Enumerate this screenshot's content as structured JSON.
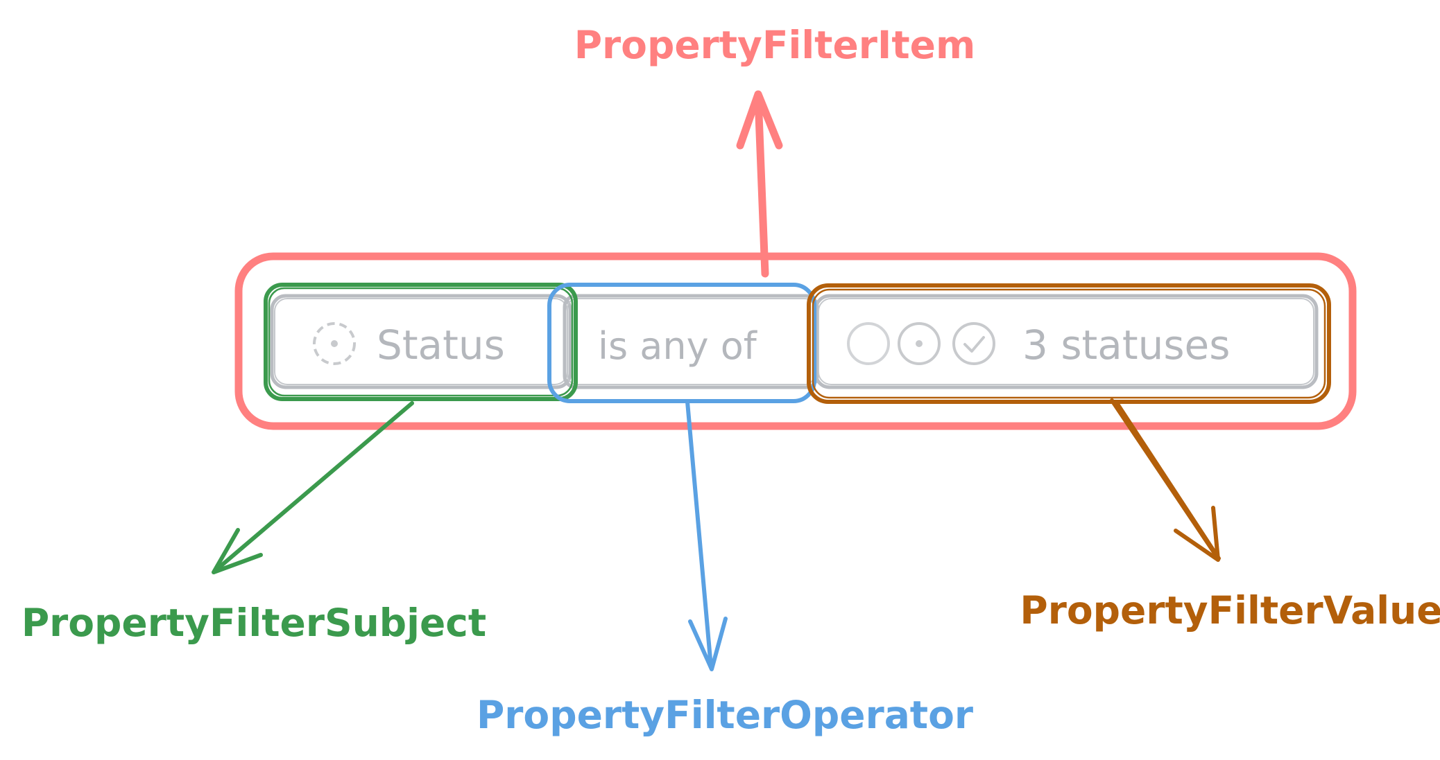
{
  "filter_item": {
    "subject": {
      "label": "Status",
      "icon": "dashed-circle-icon"
    },
    "operator": {
      "label": "is any of"
    },
    "value": {
      "label": "3 statuses",
      "icons": [
        "empty-circle-icon",
        "dotted-circle-icon",
        "check-circle-icon"
      ]
    }
  },
  "annotations": {
    "item": {
      "label": "PropertyFilterItem",
      "color": "#ff8080"
    },
    "subject": {
      "label": "PropertyFilterSubject",
      "color": "#3b9a4d"
    },
    "operator": {
      "label": "PropertyFilterOperator",
      "color": "#5aa1e3"
    },
    "value": {
      "label": "PropertyFilterValue",
      "color": "#b35f0a"
    }
  },
  "colors": {
    "ui_border": "#b9bcc1",
    "ui_text": "#b4b7bc",
    "icon_stroke": "#c8cacd"
  }
}
